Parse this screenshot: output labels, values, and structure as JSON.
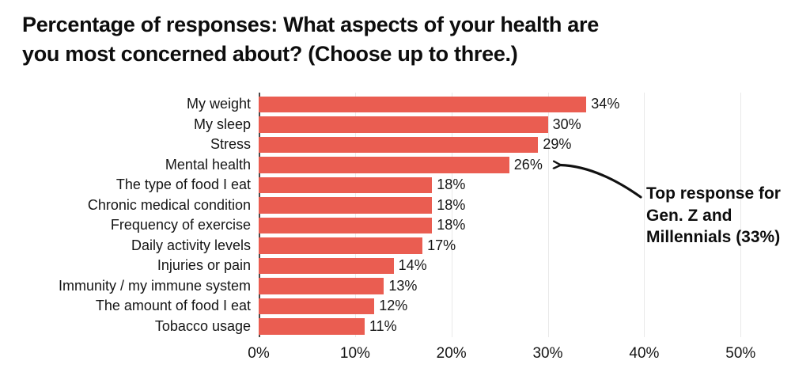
{
  "title": "Percentage of responses: What aspects of your health are\nyou most concerned about? (Choose up to three.)",
  "annotation": {
    "text": "Top response for\nGen. Z and\nMillennials (33%)",
    "points_to": "Mental health"
  },
  "chart_data": {
    "type": "bar",
    "orientation": "horizontal",
    "title": "Percentage of responses: What aspects of your health are you most concerned about? (Choose up to three.)",
    "categories": [
      "My weight",
      "My sleep",
      "Stress",
      "Mental health",
      "The type of food I eat",
      "Chronic medical condition",
      "Frequency of exercise",
      "Daily activity levels",
      "Injuries or pain",
      "Immunity / my immune system",
      "The amount of food I eat",
      "Tobacco usage"
    ],
    "values": [
      34,
      30,
      29,
      26,
      18,
      18,
      18,
      17,
      14,
      13,
      12,
      11
    ],
    "value_labels": [
      "34%",
      "30%",
      "29%",
      "26%",
      "18%",
      "18%",
      "18%",
      "17%",
      "14%",
      "13%",
      "12%",
      "11%"
    ],
    "x_ticks": [
      "0%",
      "10%",
      "20%",
      "30%",
      "40%",
      "50%"
    ],
    "x_tick_values": [
      0,
      10,
      20,
      30,
      40,
      50
    ],
    "xlim": [
      0,
      54.4
    ],
    "grid": true,
    "legend": false,
    "xlabel": "",
    "ylabel": "",
    "bar_color": "#EA5D51",
    "annotation": "Top response for Gen. Z and Millennials (33%) — points to Mental health (26%)"
  },
  "colors": {
    "bar": "#EA5D51",
    "text": "#151515",
    "title": "#0d0d0d",
    "gridline": "#e9e9e9",
    "axis_line": "#4a4a4a",
    "arrow": "#111111",
    "background": "#ffffff"
  }
}
